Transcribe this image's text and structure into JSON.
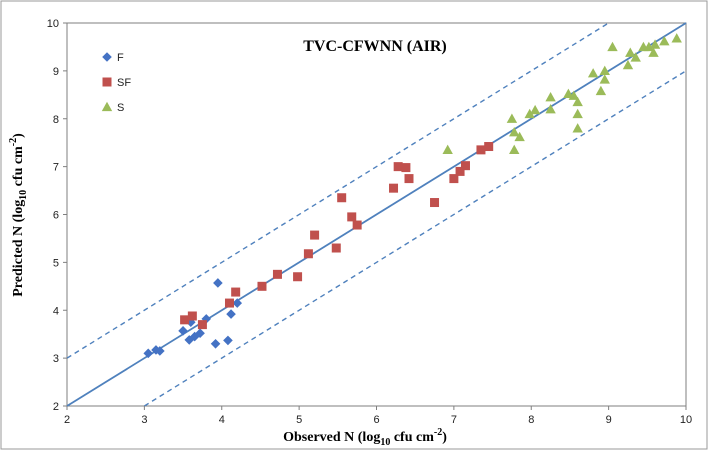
{
  "chart_data": {
    "type": "scatter",
    "title": "TVC-CFWNN (AIR)",
    "xlabel_parts": [
      "Observed N (log",
      "10",
      " cfu cm",
      "-2",
      ")"
    ],
    "ylabel_parts": [
      "Predicted N (log",
      "10",
      " cfu cm",
      "-2",
      ")"
    ],
    "xlim": [
      2,
      10
    ],
    "ylim": [
      2,
      10
    ],
    "xticks": [
      "2",
      "3",
      "4",
      "5",
      "6",
      "7",
      "8",
      "9",
      "10"
    ],
    "yticks": [
      "2",
      "3",
      "4",
      "5",
      "6",
      "7",
      "8",
      "9",
      "10"
    ],
    "grid": false,
    "legend_position": "top-left",
    "reference_lines": [
      {
        "x": [
          2,
          10
        ],
        "y": [
          2,
          10
        ],
        "style": "solid"
      },
      {
        "x": [
          2,
          9
        ],
        "y": [
          3,
          10
        ],
        "style": "dashed"
      },
      {
        "x": [
          3,
          10
        ],
        "y": [
          2,
          9
        ],
        "style": "dashed"
      }
    ],
    "series": [
      {
        "name": "F",
        "marker": "diamond",
        "color": "#4472C4",
        "points": [
          [
            3.05,
            3.1
          ],
          [
            3.15,
            3.17
          ],
          [
            3.2,
            3.15
          ],
          [
            3.5,
            3.57
          ],
          [
            3.58,
            3.38
          ],
          [
            3.6,
            3.75
          ],
          [
            3.65,
            3.45
          ],
          [
            3.72,
            3.52
          ],
          [
            3.8,
            3.82
          ],
          [
            3.92,
            3.3
          ],
          [
            3.95,
            4.57
          ],
          [
            4.08,
            3.37
          ],
          [
            4.12,
            3.92
          ],
          [
            4.2,
            4.15
          ]
        ]
      },
      {
        "name": "SF",
        "marker": "square",
        "color": "#C0504D",
        "points": [
          [
            3.52,
            3.8
          ],
          [
            3.62,
            3.88
          ],
          [
            3.75,
            3.7
          ],
          [
            4.1,
            4.15
          ],
          [
            4.18,
            4.38
          ],
          [
            4.52,
            4.5
          ],
          [
            4.72,
            4.75
          ],
          [
            4.98,
            4.7
          ],
          [
            5.12,
            5.18
          ],
          [
            5.2,
            5.57
          ],
          [
            5.48,
            5.3
          ],
          [
            5.55,
            6.35
          ],
          [
            5.68,
            5.95
          ],
          [
            5.75,
            5.78
          ],
          [
            6.22,
            6.55
          ],
          [
            6.28,
            7.0
          ],
          [
            6.38,
            6.98
          ],
          [
            6.42,
            6.75
          ],
          [
            6.75,
            6.25
          ],
          [
            7.0,
            6.75
          ],
          [
            7.08,
            6.9
          ],
          [
            7.15,
            7.02
          ],
          [
            7.35,
            7.35
          ],
          [
            7.45,
            7.42
          ]
        ]
      },
      {
        "name": "S",
        "marker": "triangle",
        "color": "#9BBB59",
        "points": [
          [
            6.92,
            7.35
          ],
          [
            7.75,
            8.0
          ],
          [
            7.78,
            7.72
          ],
          [
            7.78,
            7.35
          ],
          [
            7.85,
            7.62
          ],
          [
            7.98,
            8.1
          ],
          [
            8.05,
            8.18
          ],
          [
            8.25,
            8.45
          ],
          [
            8.25,
            8.2
          ],
          [
            8.48,
            8.52
          ],
          [
            8.55,
            8.48
          ],
          [
            8.6,
            8.35
          ],
          [
            8.6,
            8.1
          ],
          [
            8.6,
            7.8
          ],
          [
            8.8,
            8.95
          ],
          [
            8.9,
            8.58
          ],
          [
            8.95,
            9.0
          ],
          [
            8.95,
            8.82
          ],
          [
            9.05,
            9.5
          ],
          [
            9.25,
            9.12
          ],
          [
            9.28,
            9.38
          ],
          [
            9.35,
            9.28
          ],
          [
            9.45,
            9.5
          ],
          [
            9.52,
            9.5
          ],
          [
            9.58,
            9.38
          ],
          [
            9.6,
            9.55
          ],
          [
            9.72,
            9.62
          ],
          [
            9.88,
            9.68
          ]
        ]
      }
    ]
  }
}
